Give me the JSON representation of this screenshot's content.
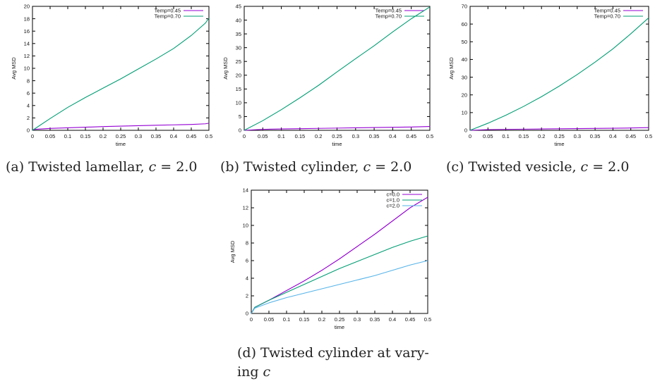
{
  "figure": {
    "captions": [
      {
        "prefix": "(a) Twisted lamellar, ",
        "var": "c",
        "suffix": " = 2.0"
      },
      {
        "prefix": "(b) Twisted cylinder, ",
        "var": "c",
        "suffix": " = 2.0"
      },
      {
        "prefix": "(c) Twisted vesicle, ",
        "var": "c",
        "suffix": " = 2.0"
      },
      {
        "line1": "(d) Twisted cylinder at vary-",
        "line2_prefix": "ing ",
        "var": "c"
      }
    ]
  },
  "chart_data": [
    {
      "type": "line",
      "xlabel": "time",
      "ylabel": "Avg MSD",
      "xlim": [
        0,
        0.5
      ],
      "ylim": [
        0,
        20
      ],
      "xticks": [
        "0",
        "0.05",
        "0.1",
        "0.15",
        "0.2",
        "0.25",
        "0.3",
        "0.35",
        "0.4",
        "0.45",
        "0.5"
      ],
      "yticks": [
        "0",
        "2",
        "4",
        "6",
        "8",
        "10",
        "12",
        "14",
        "16",
        "18",
        "20"
      ],
      "legend_position": "top-right",
      "series": [
        {
          "name": "Temp=0.45",
          "color": "#9400d3",
          "x": [
            0,
            0.005,
            0.05,
            0.1,
            0.15,
            0.2,
            0.25,
            0.3,
            0.35,
            0.4,
            0.45,
            0.49,
            0.5
          ],
          "y": [
            0,
            0.15,
            0.3,
            0.4,
            0.5,
            0.6,
            0.68,
            0.75,
            0.82,
            0.88,
            0.95,
            1.05,
            1.15
          ]
        },
        {
          "name": "Temp=0.70",
          "color": "#009e73",
          "x": [
            0,
            0.05,
            0.1,
            0.15,
            0.2,
            0.25,
            0.3,
            0.35,
            0.4,
            0.45,
            0.49,
            0.5
          ],
          "y": [
            0,
            1.9,
            3.7,
            5.3,
            6.8,
            8.3,
            9.9,
            11.5,
            13.2,
            15.3,
            17.3,
            18.1
          ]
        }
      ]
    },
    {
      "type": "line",
      "xlabel": "time",
      "ylabel": "Avg MSD",
      "xlim": [
        0,
        0.5
      ],
      "ylim": [
        0,
        45
      ],
      "xticks": [
        "0",
        "0.05",
        "0.1",
        "0.15",
        "0.2",
        "0.25",
        "0.3",
        "0.35",
        "0.4",
        "0.45",
        "0.5"
      ],
      "yticks": [
        "0",
        "5",
        "10",
        "15",
        "20",
        "25",
        "30",
        "35",
        "40",
        "45"
      ],
      "legend_position": "top-right",
      "series": [
        {
          "name": "Temp=0.45",
          "color": "#9400d3",
          "x": [
            0,
            0.05,
            0.1,
            0.15,
            0.2,
            0.25,
            0.3,
            0.35,
            0.4,
            0.45,
            0.5
          ],
          "y": [
            0,
            0.35,
            0.5,
            0.6,
            0.7,
            0.8,
            0.9,
            1.0,
            1.1,
            1.2,
            1.4
          ]
        },
        {
          "name": "Temp=0.70",
          "color": "#009e73",
          "x": [
            0,
            0.05,
            0.1,
            0.15,
            0.2,
            0.25,
            0.3,
            0.35,
            0.4,
            0.45,
            0.5
          ],
          "y": [
            0,
            3.5,
            7.5,
            11.8,
            16.3,
            21.2,
            26.0,
            30.7,
            35.7,
            40.5,
            44.8
          ]
        }
      ]
    },
    {
      "type": "line",
      "xlabel": "time",
      "ylabel": "Avg MSD",
      "xlim": [
        0,
        0.5
      ],
      "ylim": [
        0,
        70
      ],
      "xticks": [
        "0",
        "0.05",
        "0.1",
        "0.15",
        "0.2",
        "0.25",
        "0.3",
        "0.35",
        "0.4",
        "0.45",
        "0.5"
      ],
      "yticks": [
        "0",
        "10",
        "20",
        "30",
        "40",
        "50",
        "60",
        "70"
      ],
      "legend_position": "top-right",
      "series": [
        {
          "name": "Temp=0.45",
          "color": "#9400d3",
          "x": [
            0,
            0.05,
            0.1,
            0.15,
            0.2,
            0.25,
            0.3,
            0.35,
            0.4,
            0.45,
            0.5
          ],
          "y": [
            0,
            0.4,
            0.55,
            0.65,
            0.75,
            0.85,
            0.95,
            1.05,
            1.15,
            1.3,
            1.5
          ]
        },
        {
          "name": "Temp=0.70",
          "color": "#009e73",
          "x": [
            0,
            0.05,
            0.1,
            0.15,
            0.2,
            0.25,
            0.3,
            0.35,
            0.4,
            0.45,
            0.5
          ],
          "y": [
            0,
            4.0,
            8.5,
            13.5,
            19.0,
            25.0,
            31.5,
            38.5,
            46.0,
            54.5,
            63.5
          ]
        }
      ]
    },
    {
      "type": "line",
      "xlabel": "time",
      "ylabel": "Avg MSD",
      "xlim": [
        0,
        0.5
      ],
      "ylim": [
        0,
        14
      ],
      "xticks": [
        "0",
        "0.05",
        "0.1",
        "0.15",
        "0.2",
        "0.25",
        "0.3",
        "0.35",
        "0.4",
        "0.45",
        "0.5"
      ],
      "yticks": [
        "0",
        "2",
        "4",
        "6",
        "8",
        "10",
        "12",
        "14"
      ],
      "legend_position": "top-right",
      "series": [
        {
          "name": "c=0.0",
          "color": "#9400d3",
          "x": [
            0,
            0.01,
            0.05,
            0.1,
            0.15,
            0.2,
            0.25,
            0.3,
            0.35,
            0.4,
            0.45,
            0.5
          ],
          "y": [
            0,
            0.7,
            1.5,
            2.6,
            3.7,
            4.9,
            6.2,
            7.6,
            9.0,
            10.5,
            12.0,
            13.2
          ]
        },
        {
          "name": "c=1.0",
          "color": "#009e73",
          "x": [
            0,
            0.01,
            0.05,
            0.1,
            0.15,
            0.2,
            0.25,
            0.3,
            0.35,
            0.4,
            0.45,
            0.5
          ],
          "y": [
            0,
            0.7,
            1.5,
            2.4,
            3.3,
            4.2,
            5.1,
            5.9,
            6.7,
            7.5,
            8.2,
            8.8
          ]
        },
        {
          "name": "c=2.0",
          "color": "#56b4e9",
          "x": [
            0,
            0.01,
            0.05,
            0.1,
            0.15,
            0.2,
            0.25,
            0.3,
            0.35,
            0.4,
            0.45,
            0.5
          ],
          "y": [
            0,
            0.6,
            1.2,
            1.8,
            2.3,
            2.8,
            3.3,
            3.8,
            4.3,
            4.9,
            5.5,
            6.0
          ]
        }
      ]
    }
  ]
}
